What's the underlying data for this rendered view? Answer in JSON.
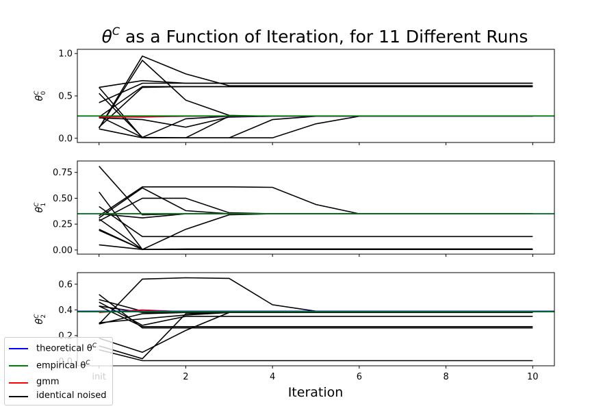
{
  "title": "θ^C as a Function of Iteration, for 11 Different Runs",
  "title_parts": {
    "theta": "θ",
    "sup": "C",
    "rest": " as a Function of Iteration, for 11 Different Runs"
  },
  "xlabel": "Iteration",
  "legend": [
    {
      "label": "theoretical θ",
      "sup": "C",
      "color": "#0000ff"
    },
    {
      "label": "empirical θ",
      "sup": "C",
      "color": "#008000"
    },
    {
      "label": "gmm",
      "sup": "",
      "color": "#ff0000"
    },
    {
      "label": "identical noised",
      "sup": "",
      "color": "#000000"
    }
  ],
  "chart_data": [
    {
      "type": "line",
      "ylabel": "θ0C",
      "ylabel_parts": {
        "base": "θ",
        "sub": "0",
        "sup": "C"
      },
      "xlim": [
        -0.5,
        10.5
      ],
      "ylim": [
        -0.05,
        1.05
      ],
      "yticks": [
        0.0,
        0.5,
        1.0
      ],
      "ytick_labels": [
        "0.0",
        "0.5",
        "1.0"
      ],
      "xticks": [
        0,
        2,
        4,
        6,
        8,
        10
      ],
      "xtick_labels": [
        "init",
        "2",
        "4",
        "6",
        "8",
        "10"
      ],
      "show_xtick_labels": false,
      "x": [
        0,
        1,
        2,
        3,
        4,
        5,
        6,
        7,
        8,
        9,
        10
      ],
      "theoretical": 0.262,
      "empirical": 0.264,
      "gmm": [
        0.25,
        0.25,
        0.26,
        0.262,
        0.262,
        0.262,
        0.262,
        0.262,
        0.262,
        0.262,
        0.262
      ],
      "runs": [
        [
          0.6,
          0.68,
          0.65,
          0.65,
          0.65,
          0.65,
          0.65,
          0.65,
          0.65,
          0.65,
          0.65
        ],
        [
          0.12,
          0.97,
          0.76,
          0.62,
          0.62,
          0.62,
          0.62,
          0.62,
          0.62,
          0.62,
          0.62
        ],
        [
          0.42,
          0.65,
          0.65,
          0.65,
          0.65,
          0.65,
          0.65,
          0.65,
          0.65,
          0.65,
          0.65
        ],
        [
          0.12,
          0.92,
          0.45,
          0.27,
          0.26,
          0.26,
          0.26,
          0.26,
          0.26,
          0.26,
          0.26
        ],
        [
          0.53,
          0.01,
          0.23,
          0.26,
          0.26,
          0.26,
          0.26,
          0.26,
          0.26,
          0.26,
          0.26
        ],
        [
          0.24,
          0.22,
          0.13,
          0.25,
          0.26,
          0.26,
          0.26,
          0.26,
          0.26,
          0.26,
          0.26
        ],
        [
          0.26,
          0.01,
          0.005,
          0.005,
          0.22,
          0.26,
          0.26,
          0.26,
          0.26,
          0.26,
          0.26
        ],
        [
          0.11,
          0.005,
          0.005,
          0.005,
          0.005,
          0.17,
          0.26,
          0.26,
          0.26,
          0.26,
          0.26
        ],
        [
          0.6,
          0.005,
          0.005,
          0.26,
          0.26,
          0.26,
          0.26,
          0.26,
          0.26,
          0.26,
          0.26
        ],
        [
          0.25,
          0.61,
          0.61,
          0.61,
          0.61,
          0.61,
          0.61,
          0.61,
          0.61,
          0.61,
          0.61
        ],
        [
          0.13,
          0.6,
          0.61,
          0.61,
          0.61,
          0.61,
          0.61,
          0.61,
          0.61,
          0.61,
          0.61
        ]
      ]
    },
    {
      "type": "line",
      "ylabel": "θ1C",
      "ylabel_parts": {
        "base": "θ",
        "sub": "1",
        "sup": "C"
      },
      "xlim": [
        -0.5,
        10.5
      ],
      "ylim": [
        -0.04,
        0.86
      ],
      "yticks": [
        0.0,
        0.25,
        0.5,
        0.75
      ],
      "ytick_labels": [
        "0.00",
        "0.25",
        "0.50",
        "0.75"
      ],
      "xticks": [
        0,
        2,
        4,
        6,
        8,
        10
      ],
      "xtick_labels": [
        "init",
        "2",
        "4",
        "6",
        "8",
        "10"
      ],
      "show_xtick_labels": false,
      "x": [
        0,
        1,
        2,
        3,
        4,
        5,
        6,
        7,
        8,
        9,
        10
      ],
      "theoretical": 0.35,
      "empirical": 0.35,
      "gmm": [
        0.35,
        0.35,
        0.35,
        0.35,
        0.35,
        0.35,
        0.35,
        0.35,
        0.35,
        0.35,
        0.35
      ],
      "runs": [
        [
          0.81,
          0.34,
          0.35,
          0.35,
          0.35,
          0.35,
          0.35,
          0.35,
          0.35,
          0.35,
          0.35
        ],
        [
          0.56,
          0.005,
          0.2,
          0.34,
          0.35,
          0.35,
          0.35,
          0.35,
          0.35,
          0.35,
          0.35
        ],
        [
          0.42,
          0.13,
          0.13,
          0.13,
          0.13,
          0.13,
          0.13,
          0.13,
          0.13,
          0.13,
          0.13
        ],
        [
          0.33,
          0.61,
          0.61,
          0.61,
          0.605,
          0.44,
          0.35,
          0.35,
          0.35,
          0.35,
          0.35
        ],
        [
          0.28,
          0.5,
          0.5,
          0.36,
          0.35,
          0.35,
          0.35,
          0.35,
          0.35,
          0.35,
          0.35
        ],
        [
          0.31,
          0.6,
          0.38,
          0.35,
          0.35,
          0.35,
          0.35,
          0.35,
          0.35,
          0.35,
          0.35
        ],
        [
          0.35,
          0.31,
          0.35,
          0.35,
          0.35,
          0.35,
          0.35,
          0.35,
          0.35,
          0.35,
          0.35
        ],
        [
          0.2,
          0.005,
          0.005,
          0.005,
          0.005,
          0.005,
          0.005,
          0.005,
          0.005,
          0.005,
          0.005
        ],
        [
          0.05,
          0.005,
          0.01,
          0.01,
          0.01,
          0.01,
          0.01,
          0.01,
          0.01,
          0.01,
          0.01
        ],
        [
          0.19,
          0.005,
          0.005,
          0.005,
          0.005,
          0.005,
          0.005,
          0.005,
          0.005,
          0.005,
          0.005
        ],
        [
          0.3,
          0.005,
          0.005,
          0.005,
          0.005,
          0.005,
          0.005,
          0.005,
          0.005,
          0.005,
          0.005
        ]
      ]
    },
    {
      "type": "line",
      "ylabel": "θ2C",
      "ylabel_parts": {
        "base": "θ",
        "sub": "2",
        "sup": "C"
      },
      "xlim": [
        -0.5,
        10.5
      ],
      "ylim": [
        -0.035,
        0.69
      ],
      "yticks": [
        0.0,
        0.2,
        0.4,
        0.6
      ],
      "ytick_labels": [
        "0.0",
        "0.2",
        "0.4",
        "0.6"
      ],
      "xticks": [
        0,
        2,
        4,
        6,
        8,
        10
      ],
      "xtick_labels": [
        "init",
        "2",
        "4",
        "6",
        "8",
        "10"
      ],
      "show_xtick_labels": true,
      "x": [
        0,
        1,
        2,
        3,
        4,
        5,
        6,
        7,
        8,
        9,
        10
      ],
      "theoretical": 0.39,
      "empirical": 0.385,
      "gmm": [
        0.38,
        0.4,
        0.385,
        0.385,
        0.385,
        0.385,
        0.385,
        0.385,
        0.385,
        0.385,
        0.385
      ],
      "runs": [
        [
          0.52,
          0.26,
          0.26,
          0.26,
          0.26,
          0.26,
          0.26,
          0.26,
          0.26,
          0.26,
          0.26
        ],
        [
          0.48,
          0.39,
          0.39,
          0.39,
          0.39,
          0.39,
          0.39,
          0.39,
          0.39,
          0.39,
          0.39
        ],
        [
          0.46,
          0.28,
          0.35,
          0.35,
          0.35,
          0.35,
          0.35,
          0.35,
          0.35,
          0.35,
          0.35
        ],
        [
          0.43,
          0.38,
          0.38,
          0.38,
          0.38,
          0.38,
          0.38,
          0.38,
          0.38,
          0.38,
          0.38
        ],
        [
          0.3,
          0.33,
          0.36,
          0.38,
          0.38,
          0.38,
          0.38,
          0.38,
          0.38,
          0.38,
          0.38
        ],
        [
          0.29,
          0.37,
          0.38,
          0.38,
          0.38,
          0.38,
          0.38,
          0.38,
          0.38,
          0.38,
          0.38
        ],
        [
          0.29,
          0.64,
          0.65,
          0.645,
          0.44,
          0.39,
          0.39,
          0.39,
          0.39,
          0.39,
          0.39
        ],
        [
          0.18,
          0.07,
          0.24,
          0.38,
          0.38,
          0.38,
          0.38,
          0.38,
          0.38,
          0.38,
          0.38
        ],
        [
          0.12,
          0.02,
          0.37,
          0.38,
          0.38,
          0.38,
          0.38,
          0.38,
          0.38,
          0.38,
          0.38
        ],
        [
          0.09,
          0.005,
          0.005,
          0.005,
          0.005,
          0.005,
          0.005,
          0.005,
          0.005,
          0.005,
          0.005
        ],
        [
          0.43,
          0.27,
          0.27,
          0.27,
          0.27,
          0.27,
          0.27,
          0.27,
          0.27,
          0.27,
          0.27
        ]
      ]
    }
  ]
}
